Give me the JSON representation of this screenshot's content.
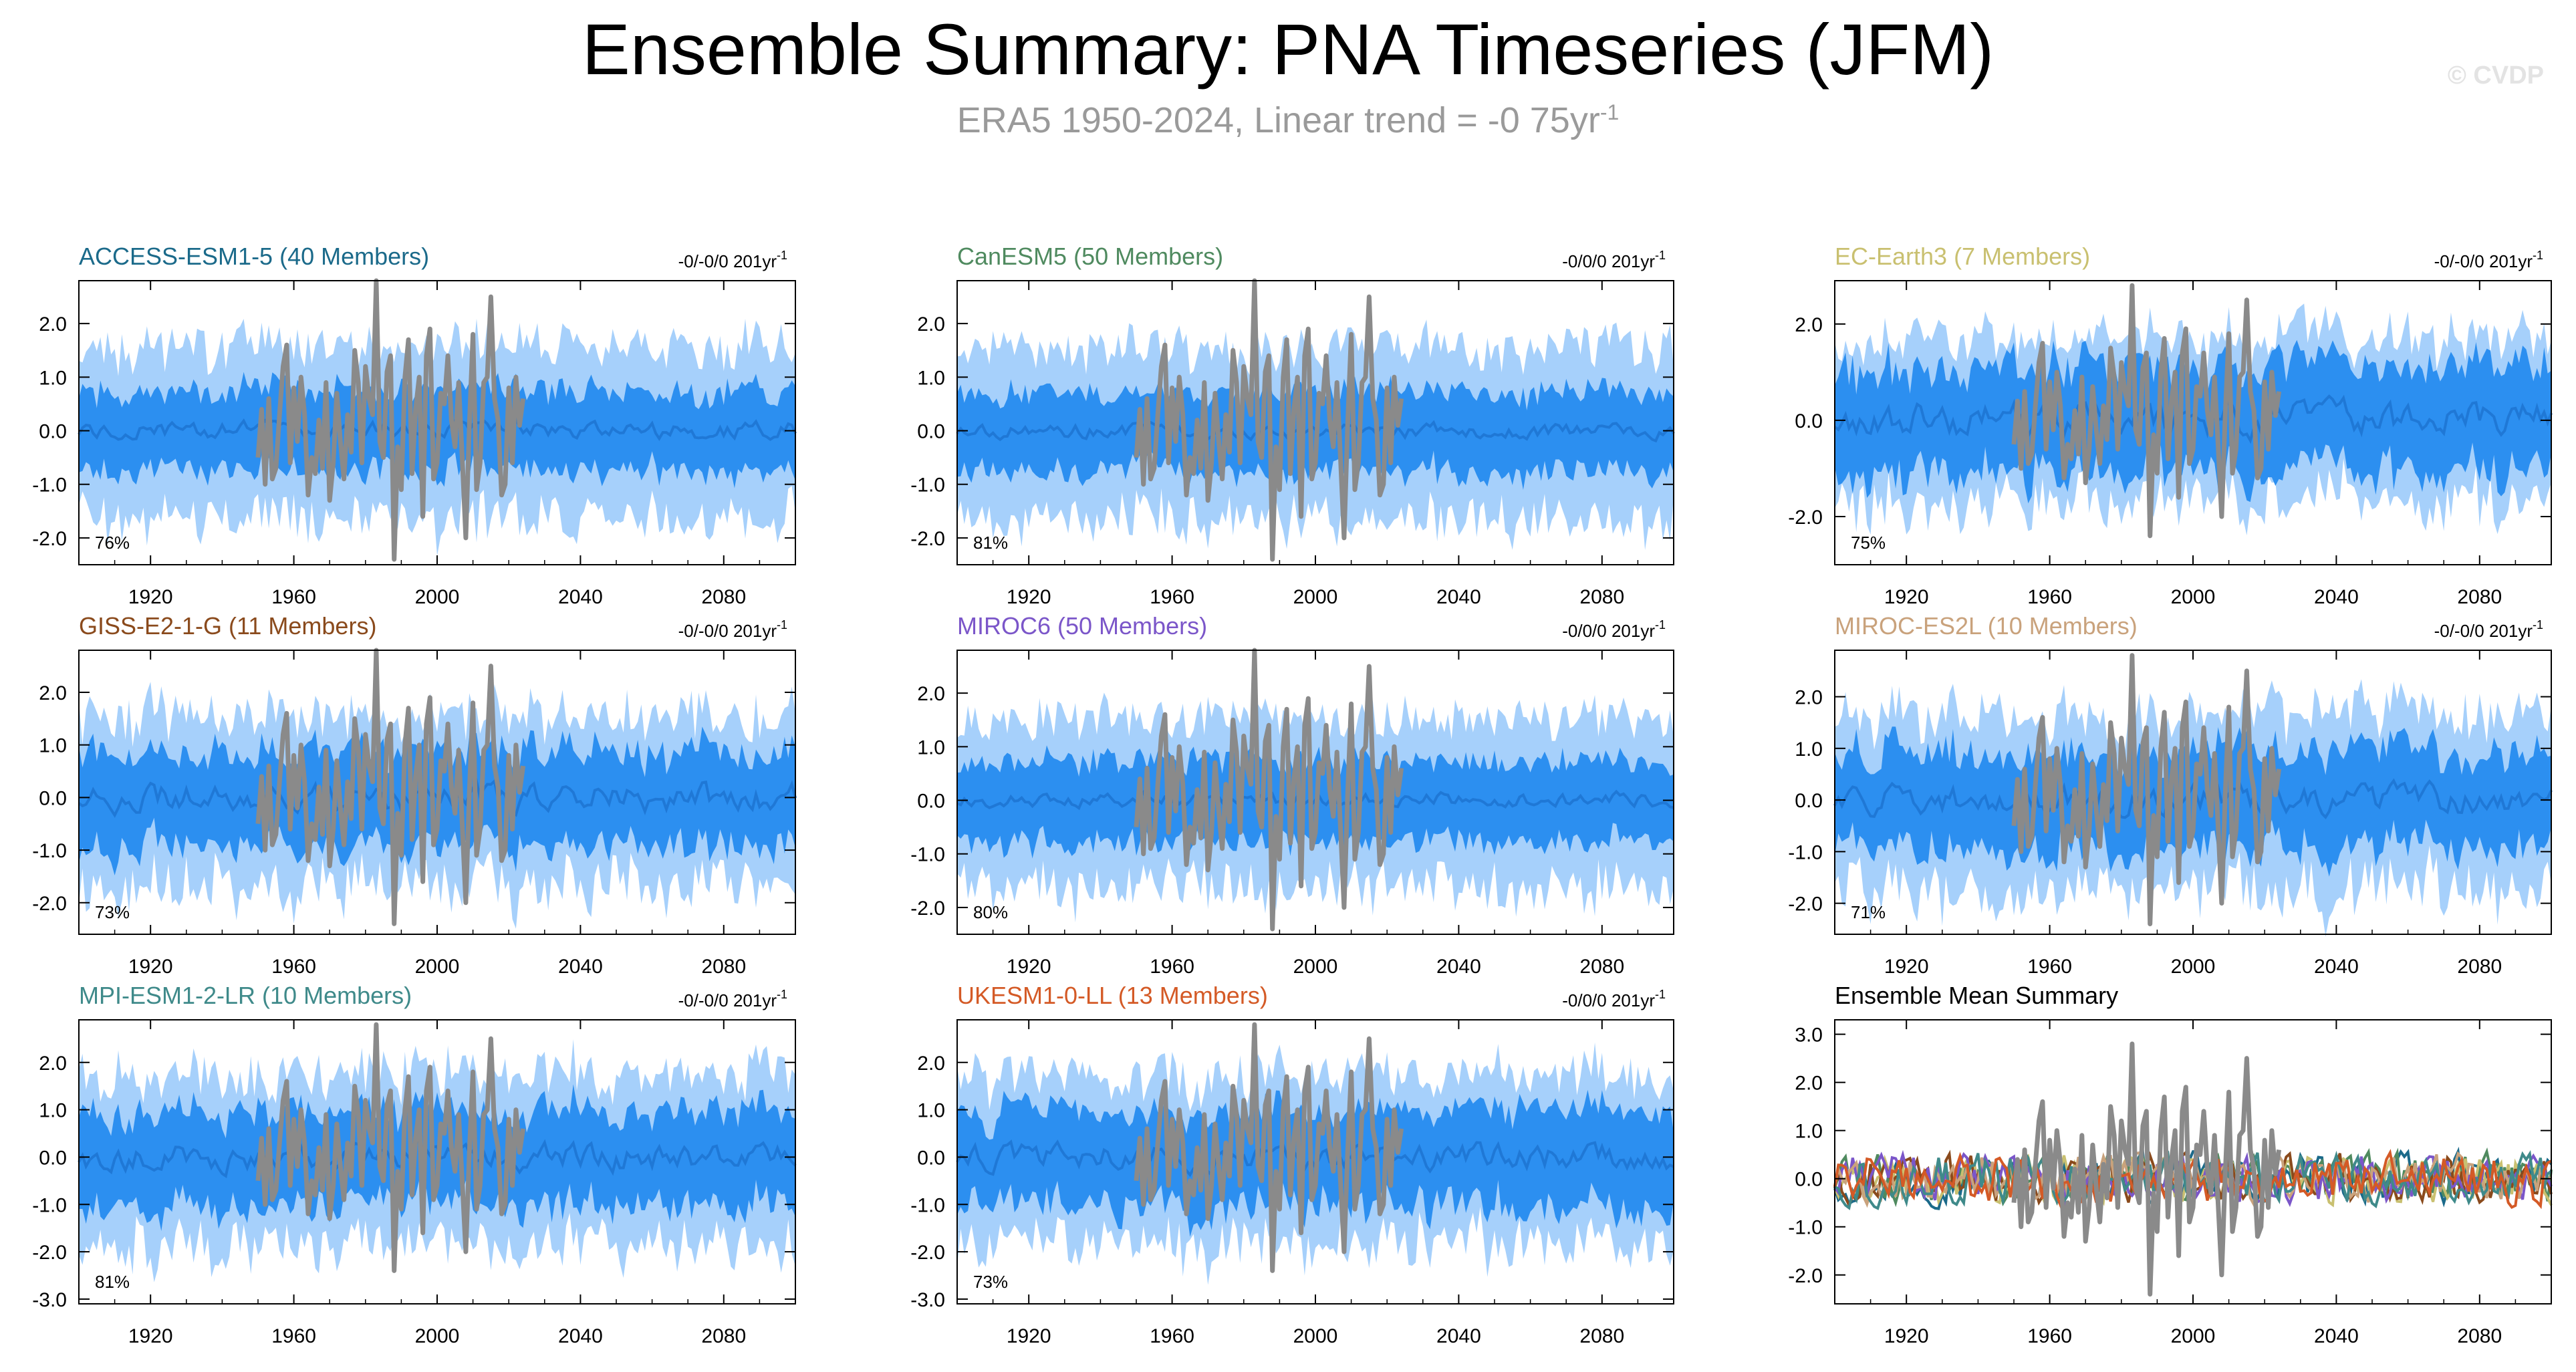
{
  "title": "Ensemble Summary: PNA Timeseries (JFM)",
  "subtitle_main": "ERA5 1950-2024, Linear trend = -0 75yr",
  "subtitle_sup": "-1",
  "watermark": "© CVDP",
  "colors": {
    "outer_band": "#a6d0fb",
    "inner_band": "#2c8ff0",
    "ensemble_mean": "#1f78d6",
    "observations": "#8a8a8a",
    "axis": "#000000"
  },
  "chart_data": [
    {
      "type": "area",
      "id": "access",
      "title": "ACCESS-ESM1-5 (40 Members)",
      "title_color": "#1b6a8a",
      "trend": "-0/-0/0 201yr",
      "trend_sup": "-1",
      "pct": "76%",
      "xlim": [
        1900,
        2100
      ],
      "ylim": [
        -2.5,
        2.8
      ],
      "xticks": [
        1920,
        1960,
        2000,
        2040,
        2080
      ],
      "xtick_labels": [
        "1920",
        "1960",
        "2000",
        "2040",
        "2080"
      ],
      "yticks": [
        2.0,
        1.0,
        0.0,
        -1.0,
        -2.0
      ],
      "ytick_labels": [
        "2.0",
        "1.0",
        "0.0",
        "-1.0",
        "-2.0"
      ],
      "band_outer": 1.6,
      "band_inner": 0.75,
      "mean_amp": 0.12,
      "seed": 11
    },
    {
      "type": "area",
      "id": "canesm5",
      "title": "CanESM5 (50 Members)",
      "title_color": "#4f8a5f",
      "trend": "-0/0/0 201yr",
      "trend_sup": "-1",
      "pct": "81%",
      "xlim": [
        1900,
        2100
      ],
      "ylim": [
        -2.5,
        2.8
      ],
      "xticks": [
        1920,
        1960,
        2000,
        2040,
        2080
      ],
      "xtick_labels": [
        "1920",
        "1960",
        "2000",
        "2040",
        "2080"
      ],
      "yticks": [
        2.0,
        1.0,
        0.0,
        -1.0,
        -2.0
      ],
      "ytick_labels": [
        "2.0",
        "1.0",
        "0.0",
        "-1.0",
        "-2.0"
      ],
      "band_outer": 1.6,
      "band_inner": 0.75,
      "mean_amp": 0.1,
      "seed": 23
    },
    {
      "type": "area",
      "id": "ecearth3",
      "title": "EC-Earth3 (7 Members)",
      "title_color": "#c9c070",
      "trend": "-0/-0/0 201yr",
      "trend_sup": "-1",
      "pct": "75%",
      "xlim": [
        1900,
        2100
      ],
      "ylim": [
        -3.0,
        2.9
      ],
      "xticks": [
        1920,
        1960,
        2000,
        2040,
        2080
      ],
      "xtick_labels": [
        "1920",
        "1960",
        "2000",
        "2040",
        "2080"
      ],
      "yticks": [
        2.0,
        0.0,
        -2.0
      ],
      "ytick_labels": [
        "2.0",
        "0.0",
        "-2.0"
      ],
      "band_outer": 1.7,
      "band_inner": 1.1,
      "mean_amp": 0.25,
      "seed": 37
    },
    {
      "type": "area",
      "id": "giss",
      "title": "GISS-E2-1-G (11 Members)",
      "title_color": "#8a4a1c",
      "trend": "-0/-0/0 201yr",
      "trend_sup": "-1",
      "pct": "73%",
      "xlim": [
        1900,
        2100
      ],
      "ylim": [
        -2.6,
        2.8
      ],
      "xticks": [
        1920,
        1960,
        2000,
        2040,
        2080
      ],
      "xtick_labels": [
        "1920",
        "1960",
        "2000",
        "2040",
        "2080"
      ],
      "yticks": [
        2.0,
        1.0,
        0.0,
        -1.0,
        -2.0
      ],
      "ytick_labels": [
        "2.0",
        "1.0",
        "0.0",
        "-1.0",
        "-2.0"
      ],
      "band_outer": 1.6,
      "band_inner": 0.9,
      "mean_amp": 0.2,
      "seed": 41
    },
    {
      "type": "area",
      "id": "miroc6",
      "title": "MIROC6 (50 Members)",
      "title_color": "#7b56c9",
      "trend": "-0/0/0 201yr",
      "trend_sup": "-1",
      "pct": "80%",
      "xlim": [
        1900,
        2100
      ],
      "ylim": [
        -2.5,
        2.8
      ],
      "xticks": [
        1920,
        1960,
        2000,
        2040,
        2080
      ],
      "xtick_labels": [
        "1920",
        "1960",
        "2000",
        "2040",
        "2080"
      ],
      "yticks": [
        2.0,
        1.0,
        0.0,
        -1.0,
        -2.0
      ],
      "ytick_labels": [
        "2.0",
        "1.0",
        "0.0",
        "-1.0",
        "-2.0"
      ],
      "band_outer": 1.6,
      "band_inner": 0.75,
      "mean_amp": 0.1,
      "seed": 53
    },
    {
      "type": "area",
      "id": "miroces2l",
      "title": "MIROC-ES2L (10 Members)",
      "title_color": "#c9a27c",
      "trend": "-0/-0/0 201yr",
      "trend_sup": "-1",
      "pct": "71%",
      "xlim": [
        1900,
        2100
      ],
      "ylim": [
        -2.6,
        2.9
      ],
      "xticks": [
        1920,
        1960,
        2000,
        2040,
        2080
      ],
      "xtick_labels": [
        "1920",
        "1960",
        "2000",
        "2040",
        "2080"
      ],
      "yticks": [
        2.0,
        1.0,
        0.0,
        -1.0,
        -2.0
      ],
      "ytick_labels": [
        "2.0",
        "1.0",
        "0.0",
        "-1.0",
        "-2.0"
      ],
      "band_outer": 1.7,
      "band_inner": 0.95,
      "mean_amp": 0.2,
      "seed": 67
    },
    {
      "type": "area",
      "id": "mpi",
      "title": "MPI-ESM1-2-LR (10 Members)",
      "title_color": "#3f8a8a",
      "trend": "-0/-0/0 201yr",
      "trend_sup": "-1",
      "pct": "81%",
      "xlim": [
        1900,
        2100
      ],
      "ylim": [
        -3.1,
        2.9
      ],
      "xticks": [
        1920,
        1960,
        2000,
        2040,
        2080
      ],
      "xtick_labels": [
        "1920",
        "1960",
        "2000",
        "2040",
        "2080"
      ],
      "yticks": [
        2.0,
        1.0,
        0.0,
        -1.0,
        -2.0,
        -3.0
      ],
      "ytick_labels": [
        "2.0",
        "1.0",
        "0.0",
        "-1.0",
        "-2.0",
        "-3.0"
      ],
      "band_outer": 1.8,
      "band_inner": 1.0,
      "mean_amp": 0.2,
      "seed": 71
    },
    {
      "type": "area",
      "id": "ukesm",
      "title": "UKESM1-0-LL (13 Members)",
      "title_color": "#d45a26",
      "trend": "-0/0/0 201yr",
      "trend_sup": "-1",
      "pct": "73%",
      "xlim": [
        1900,
        2100
      ],
      "ylim": [
        -3.1,
        2.9
      ],
      "xticks": [
        1920,
        1960,
        2000,
        2040,
        2080
      ],
      "xtick_labels": [
        "1920",
        "1960",
        "2000",
        "2040",
        "2080"
      ],
      "yticks": [
        2.0,
        1.0,
        0.0,
        -1.0,
        -2.0,
        -3.0
      ],
      "ytick_labels": [
        "2.0",
        "1.0",
        "0.0",
        "-1.0",
        "-2.0",
        "-3.0"
      ],
      "band_outer": 1.8,
      "band_inner": 1.0,
      "mean_amp": 0.2,
      "seed": 83
    },
    {
      "type": "line",
      "id": "ensmean",
      "title": "Ensemble Mean Summary",
      "title_color": "#000000",
      "trend": "",
      "trend_sup": "",
      "pct": "",
      "xlim": [
        1900,
        2100
      ],
      "ylim": [
        -2.6,
        3.3
      ],
      "xticks": [
        1920,
        1960,
        2000,
        2040,
        2080
      ],
      "xtick_labels": [
        "1920",
        "1960",
        "2000",
        "2040",
        "2080"
      ],
      "yticks": [
        3.0,
        2.0,
        1.0,
        0.0,
        -1.0,
        -2.0
      ],
      "ytick_labels": [
        "3.0",
        "2.0",
        "1.0",
        "0.0",
        "-1.0",
        "-2.0"
      ],
      "series_colors": [
        "#1b6a8a",
        "#4f8a5f",
        "#c9c070",
        "#8a4a1c",
        "#7b56c9",
        "#c9a27c",
        "#3f8a8a",
        "#d45a26"
      ],
      "seed": 97
    }
  ],
  "observations": {
    "name": "ERA5",
    "years": [
      1950,
      1951,
      1952,
      1953,
      1954,
      1955,
      1956,
      1957,
      1958,
      1959,
      1960,
      1961,
      1962,
      1963,
      1964,
      1965,
      1966,
      1967,
      1968,
      1969,
      1970,
      1971,
      1972,
      1973,
      1974,
      1975,
      1976,
      1977,
      1978,
      1979,
      1980,
      1981,
      1982,
      1983,
      1984,
      1985,
      1986,
      1987,
      1988,
      1989,
      1990,
      1991,
      1992,
      1993,
      1994,
      1995,
      1996,
      1997,
      1998,
      1999,
      2000,
      2001,
      2002,
      2003,
      2004,
      2005,
      2006,
      2007,
      2008,
      2009,
      2010,
      2011,
      2012,
      2013,
      2014,
      2015,
      2016,
      2017,
      2018,
      2019,
      2020,
      2021,
      2022,
      2023,
      2024
    ],
    "values": [
      -0.5,
      0.4,
      -1.0,
      0.6,
      -0.9,
      -0.7,
      0.3,
      1.2,
      1.6,
      -0.6,
      0.8,
      -0.2,
      1.0,
      0.3,
      -1.2,
      -0.5,
      -0.8,
      0.2,
      -0.7,
      0.9,
      -1.3,
      -0.6,
      0.7,
      -0.2,
      -0.9,
      0.3,
      -0.4,
      1.5,
      0.9,
      -0.6,
      1.2,
      0.6,
      0.3,
      2.8,
      -0.2,
      -0.5,
      1.1,
      1.4,
      -2.4,
      -0.3,
      -1.1,
      1.0,
      1.7,
      -0.8,
      0.4,
      1.0,
      -1.6,
      1.4,
      1.9,
      -0.9,
      -0.6,
      0.7,
      0.5,
      1.4,
      0.2,
      -0.3,
      0.9,
      -0.5,
      -2.0,
      0.1,
      1.8,
      -1.1,
      -0.6,
      0.9,
      1.0,
      2.5,
      0.6,
      0.2,
      -1.2,
      -1.0,
      0.8,
      -0.6,
      1.0,
      0.1,
      0.6
    ]
  }
}
